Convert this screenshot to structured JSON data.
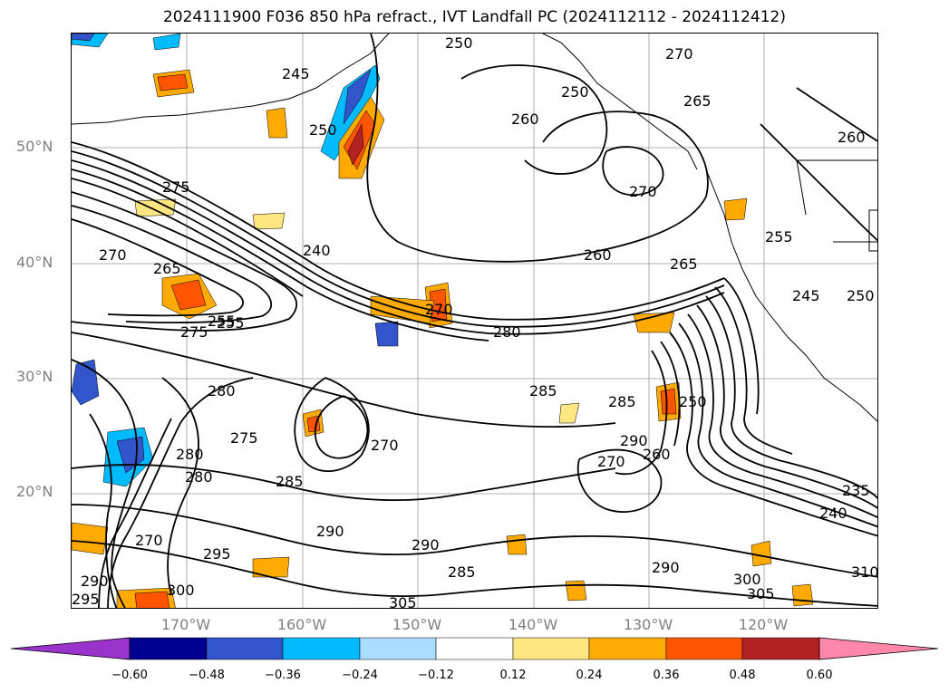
{
  "title": "2024111900 F036 850 hPa refract., IVT Landfall PC (2024112112 - 2024112412)",
  "map": {
    "latitude_labels": [
      "50°N",
      "40°N",
      "30°N",
      "20°N"
    ],
    "longitude_labels": [
      "170°W",
      "160°W",
      "150°W",
      "140°W",
      "130°W",
      "120°W"
    ],
    "contour_labels": [
      "250",
      "245",
      "250",
      "270",
      "250",
      "265",
      "260",
      "260",
      "270",
      "275",
      "260",
      "240",
      "265",
      "270",
      "255",
      "245",
      "250",
      "265",
      "270",
      "255",
      "275",
      "280",
      "285",
      "285",
      "250",
      "235",
      "240",
      "270",
      "270",
      "260",
      "275",
      "290",
      "280",
      "285",
      "290",
      "295",
      "290",
      "290",
      "295",
      "300",
      "305",
      "285",
      "310",
      "300",
      "305",
      "290",
      "270",
      "255",
      "280",
      "280"
    ]
  },
  "colorbar": {
    "ticks": [
      "−0.60",
      "−0.48",
      "−0.36",
      "−0.24",
      "−0.12",
      "0.12",
      "0.24",
      "0.36",
      "0.48",
      "0.60"
    ],
    "colors": [
      "#9933cc",
      "#000090",
      "#3355cc",
      "#00bbff",
      "#aaddff",
      "#ffffff",
      "#ffe680",
      "#ffaa00",
      "#ff5500",
      "#b22222",
      "#ff88aa"
    ]
  }
}
